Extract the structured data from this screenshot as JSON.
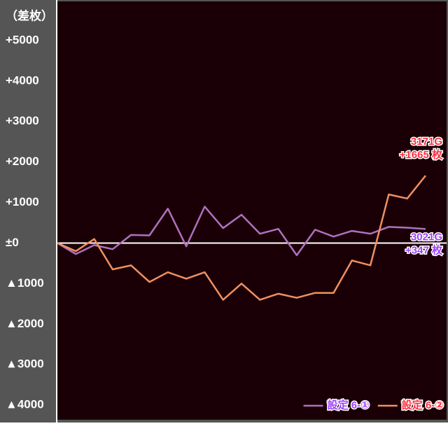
{
  "chart_data": {
    "type": "line",
    "y_axis_label": "（差枚）",
    "ylim": [
      -4360,
      6000
    ],
    "yticks": [
      {
        "value": 5000,
        "label": "+5000"
      },
      {
        "value": 4000,
        "label": "+4000"
      },
      {
        "value": 3000,
        "label": "+3000"
      },
      {
        "value": 2000,
        "label": "+2000"
      },
      {
        "value": 1000,
        "label": "+1000"
      },
      {
        "value": 0,
        "label": "±0"
      },
      {
        "value": -1000,
        "label": "▲1000"
      },
      {
        "value": -2000,
        "label": "▲2000"
      },
      {
        "value": -3000,
        "label": "▲3000"
      },
      {
        "value": -4000,
        "label": "▲4000"
      }
    ],
    "zero_line": true,
    "legend": "bottom-right",
    "series": [
      {
        "name": "設定 6-①",
        "color": "#b070c0",
        "label_color": "#a040ff",
        "values": [
          0,
          -270,
          -50,
          -150,
          200,
          190,
          850,
          -80,
          900,
          370,
          700,
          230,
          350,
          -300,
          330,
          160,
          300,
          230,
          400,
          380,
          347
        ],
        "annotation": [
          "3021G",
          "+347 枚"
        ]
      },
      {
        "name": "設定 6-②",
        "color": "#f09060",
        "label_color": "#ff3040",
        "values": [
          0,
          -200,
          100,
          -650,
          -550,
          -960,
          -720,
          -880,
          -720,
          -1400,
          -1000,
          -1400,
          -1250,
          -1350,
          -1230,
          -1230,
          -430,
          -550,
          1200,
          1100,
          1665
        ],
        "annotation": [
          "3171G",
          "+1665 枚"
        ]
      }
    ]
  }
}
